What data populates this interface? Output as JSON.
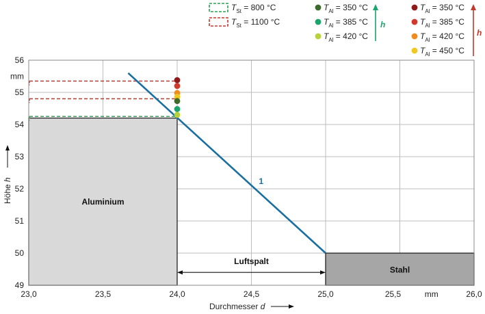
{
  "chart_data": {
    "type": "line",
    "xlabel_text": "Durchmesser",
    "xlabel_var": "d",
    "ylabel_text": "Höhe",
    "ylabel_var": "h",
    "x_unit": "mm",
    "y_unit": "mm",
    "xlim": [
      23.0,
      26.0
    ],
    "ylim": [
      49,
      56
    ],
    "x_ticks": [
      23.0,
      23.5,
      24.0,
      24.5,
      25.0,
      25.5,
      26.0
    ],
    "x_tick_labels": [
      "23,0",
      "23,5",
      "24,0",
      "24,5",
      "25,0",
      "25,5",
      "26,0"
    ],
    "y_ticks": [
      49,
      50,
      51,
      52,
      53,
      54,
      55,
      56
    ],
    "y_tick_labels": [
      "49",
      "50",
      "51",
      "52",
      "53",
      "54",
      "55",
      "56"
    ],
    "grid": true,
    "regions": {
      "aluminium": {
        "label": "Aluminium",
        "x": [
          23.0,
          24.0
        ],
        "y": [
          49,
          54.2
        ],
        "color": "#d9d9d9"
      },
      "stahl": {
        "label": "Stahl",
        "x": [
          25.0,
          26.0
        ],
        "y": [
          49,
          50.0
        ],
        "color": "#a6a6a6"
      },
      "luftspalt": {
        "label": "Luftspalt",
        "x": [
          24.0,
          25.0
        ],
        "y": 49.4
      }
    },
    "line_1": {
      "label": "1",
      "x": [
        23.67,
        25.0
      ],
      "y": [
        55.6,
        50.0
      ],
      "color": "#1a6fa0",
      "label_at": [
        24.55,
        52.15
      ]
    },
    "dashed_levels": [
      {
        "name": "T_St = 800 °C",
        "x": [
          23.0,
          24.0
        ],
        "y": 54.25,
        "color": "#2aa050"
      },
      {
        "name": "T_St = 1100 °C a",
        "x": [
          23.0,
          24.0
        ],
        "y": 54.8,
        "color": "#c0392b"
      },
      {
        "name": "T_St = 1100 °C b",
        "x": [
          23.0,
          24.0
        ],
        "y": 55.35,
        "color": "#c0392b"
      }
    ],
    "points_green": [
      {
        "T": 350,
        "x": 24.0,
        "y": 54.73,
        "color": "#3c6b2a"
      },
      {
        "T": 385,
        "x": 24.0,
        "y": 54.48,
        "color": "#1aa56a"
      },
      {
        "T": 420,
        "x": 24.0,
        "y": 54.3,
        "color": "#b8d23a"
      }
    ],
    "points_red": [
      {
        "T": 350,
        "x": 24.0,
        "y": 55.38,
        "color": "#8e1a1a"
      },
      {
        "T": 385,
        "x": 24.0,
        "y": 55.2,
        "color": "#d0392b"
      },
      {
        "T": 420,
        "x": 24.0,
        "y": 54.98,
        "color": "#f08c1e"
      },
      {
        "T": 450,
        "x": 24.0,
        "y": 54.86,
        "color": "#f2c81e"
      }
    ]
  },
  "legend": {
    "st_entries": [
      {
        "symbol": "T",
        "sub": "St",
        "text": " = 800 °C",
        "color": "#2aa050"
      },
      {
        "symbol": "T",
        "sub": "St",
        "text": " = 1100 °C",
        "color": "#c0392b"
      }
    ],
    "green_entries": [
      {
        "symbol": "T",
        "sub": "Al",
        "text": " = 350 °C",
        "color": "#3c6b2a"
      },
      {
        "symbol": "T",
        "sub": "Al",
        "text": " = 385 °C",
        "color": "#1aa56a"
      },
      {
        "symbol": "T",
        "sub": "Al",
        "text": " = 420 °C",
        "color": "#b8d23a"
      }
    ],
    "red_entries": [
      {
        "symbol": "T",
        "sub": "Al",
        "text": " = 350 °C",
        "color": "#8e1a1a"
      },
      {
        "symbol": "T",
        "sub": "Al",
        "text": " = 385 °C",
        "color": "#d0392b"
      },
      {
        "symbol": "T",
        "sub": "Al",
        "text": " = 420 °C",
        "color": "#f08c1e"
      },
      {
        "symbol": "T",
        "sub": "Al",
        "text": " = 450 °C",
        "color": "#f2c81e"
      }
    ],
    "arrow_label_green": "h",
    "arrow_label_red": "h",
    "arrow_green_color": "#1aa56a",
    "arrow_red_color": "#c0392b"
  }
}
